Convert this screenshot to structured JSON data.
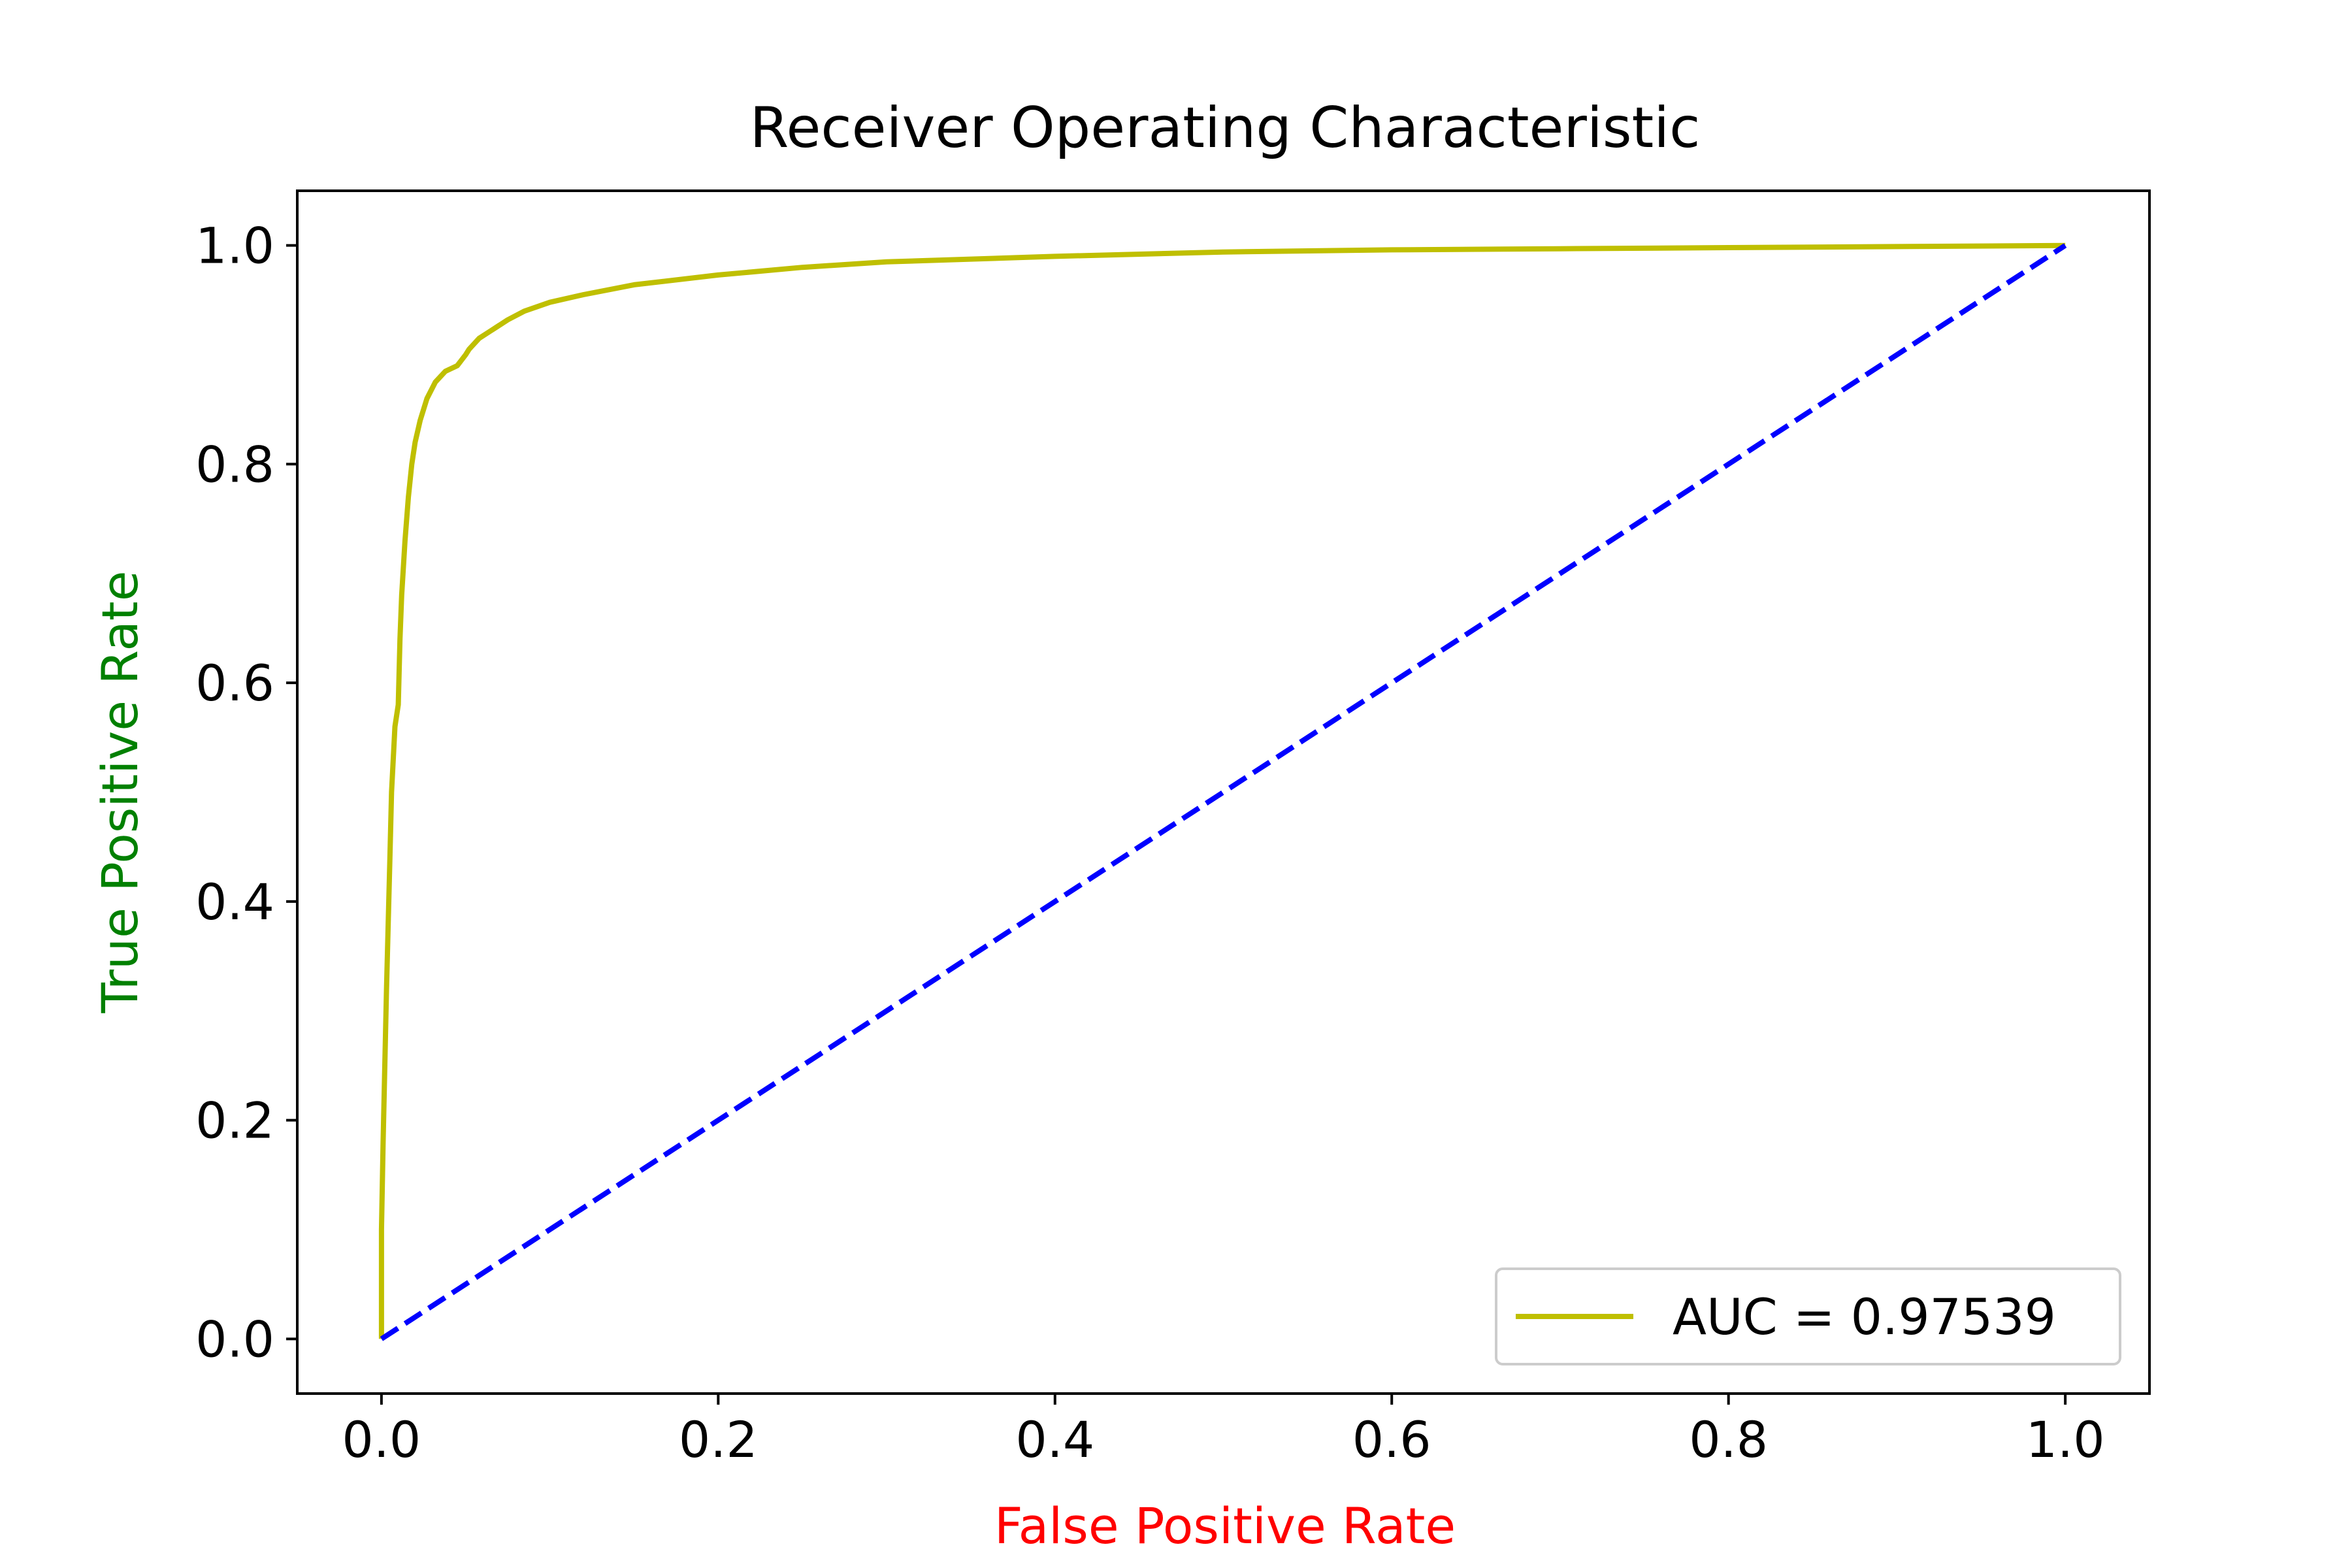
{
  "chart_data": {
    "type": "line",
    "title": "Receiver Operating Characteristic",
    "xlabel": "False Positive Rate",
    "ylabel": "True Positive Rate",
    "xlabel_color": "#ff0000",
    "ylabel_color": "#008000",
    "xlim": [
      -0.05,
      1.05
    ],
    "ylim": [
      -0.05,
      1.05
    ],
    "xticks": [
      0.0,
      0.2,
      0.4,
      0.6,
      0.8,
      1.0
    ],
    "yticks": [
      0.0,
      0.2,
      0.4,
      0.6,
      0.8,
      1.0
    ],
    "xtick_labels": [
      "0.0",
      "0.2",
      "0.4",
      "0.6",
      "0.8",
      "1.0"
    ],
    "ytick_labels": [
      "0.0",
      "0.2",
      "0.4",
      "0.6",
      "0.8",
      "1.0"
    ],
    "grid": false,
    "legend_position": "lower-right",
    "series": [
      {
        "name": "AUC = 0.97539",
        "color": "#bfbf00",
        "style": "solid",
        "x": [
          0.0,
          0.0,
          0.001,
          0.002,
          0.003,
          0.004,
          0.005,
          0.006,
          0.008,
          0.01,
          0.011,
          0.012,
          0.014,
          0.016,
          0.018,
          0.02,
          0.023,
          0.027,
          0.032,
          0.038,
          0.045,
          0.05,
          0.052,
          0.058,
          0.065,
          0.075,
          0.085,
          0.1,
          0.12,
          0.15,
          0.2,
          0.25,
          0.3,
          0.4,
          0.5,
          0.6,
          0.7,
          0.8,
          0.9,
          1.0
        ],
        "y": [
          0.0,
          0.1,
          0.18,
          0.25,
          0.32,
          0.38,
          0.44,
          0.5,
          0.56,
          0.58,
          0.64,
          0.68,
          0.73,
          0.77,
          0.8,
          0.82,
          0.84,
          0.86,
          0.875,
          0.885,
          0.89,
          0.9,
          0.905,
          0.915,
          0.922,
          0.932,
          0.94,
          0.948,
          0.955,
          0.964,
          0.973,
          0.98,
          0.985,
          0.99,
          0.994,
          0.996,
          0.997,
          0.998,
          0.999,
          1.0
        ]
      },
      {
        "color": "#0000ff",
        "style": "dashed",
        "x": [
          0.0,
          1.0
        ],
        "y": [
          0.0,
          1.0
        ]
      }
    ]
  }
}
